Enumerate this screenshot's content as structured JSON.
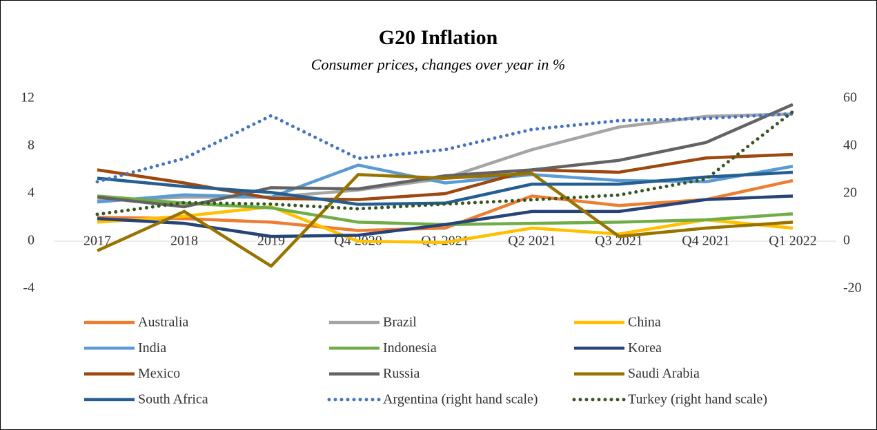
{
  "chart_data": {
    "type": "line",
    "title": "G20 Inflation",
    "subtitle": "Consumer prices, changes over year in %",
    "categories": [
      "2017",
      "2018",
      "2019",
      "Q4 2020",
      "Q1 2021",
      "Q2 2021",
      "Q3 2021",
      "Q4 2021",
      "Q1 2022"
    ],
    "ylim": [
      -4,
      12
    ],
    "yticks": [
      -4,
      0,
      4,
      8,
      12
    ],
    "y2lim": [
      -20,
      60
    ],
    "y2ticks": [
      -20,
      0,
      20,
      40,
      60
    ],
    "legend": "bottom",
    "series": [
      {
        "name": "Australia",
        "color": "#ED7D31",
        "style": "solid",
        "values": [
          2.0,
          1.9,
          1.6,
          0.9,
          1.1,
          3.8,
          3.0,
          3.5,
          5.1
        ]
      },
      {
        "name": "Brazil",
        "color": "#A5A5A5",
        "style": "solid",
        "values": [
          3.4,
          3.7,
          3.7,
          4.3,
          5.3,
          7.7,
          9.6,
          10.5,
          10.7
        ]
      },
      {
        "name": "China",
        "color": "#FFC000",
        "style": "solid",
        "values": [
          1.6,
          2.1,
          2.9,
          0.0,
          -0.1,
          1.1,
          0.6,
          1.8,
          1.1
        ]
      },
      {
        "name": "India",
        "color": "#5B9BD5",
        "style": "solid",
        "values": [
          3.3,
          3.9,
          3.7,
          6.4,
          4.9,
          5.6,
          5.1,
          5.0,
          6.3
        ]
      },
      {
        "name": "Indonesia",
        "color": "#70AD47",
        "style": "solid",
        "values": [
          3.8,
          3.2,
          2.8,
          1.6,
          1.4,
          1.5,
          1.6,
          1.8,
          2.3
        ]
      },
      {
        "name": "Korea",
        "color": "#264478",
        "style": "solid",
        "values": [
          1.9,
          1.5,
          0.4,
          0.5,
          1.4,
          2.5,
          2.5,
          3.5,
          3.8
        ]
      },
      {
        "name": "Mexico",
        "color": "#9E480E",
        "style": "solid",
        "values": [
          6.0,
          4.9,
          3.6,
          3.5,
          4.0,
          6.0,
          5.8,
          7.0,
          7.3
        ]
      },
      {
        "name": "Russia",
        "color": "#636363",
        "style": "solid",
        "values": [
          3.7,
          2.9,
          4.5,
          4.4,
          5.5,
          6.0,
          6.8,
          8.3,
          11.5
        ]
      },
      {
        "name": "Saudi Arabia",
        "color": "#997300",
        "style": "solid",
        "values": [
          -0.8,
          2.5,
          -2.1,
          5.6,
          5.3,
          5.7,
          0.4,
          1.1,
          1.6
        ]
      },
      {
        "name": "South Africa",
        "color": "#255E91",
        "style": "solid",
        "values": [
          5.3,
          4.6,
          4.1,
          3.1,
          3.2,
          4.8,
          4.8,
          5.4,
          5.8
        ]
      },
      {
        "name": "Argentina (right hand scale)",
        "color": "#4472C4",
        "style": "dotted",
        "axis": "y2",
        "values": [
          25.0,
          34.8,
          52.8,
          34.8,
          38.5,
          47.0,
          50.7,
          51.6,
          53.6
        ]
      },
      {
        "name": "Turkey (right hand scale)",
        "color": "#375623",
        "style": "dotted",
        "axis": "y2",
        "values": [
          11.3,
          16.2,
          15.6,
          13.6,
          15.6,
          17.4,
          19.4,
          26.1,
          54.5
        ]
      }
    ]
  }
}
